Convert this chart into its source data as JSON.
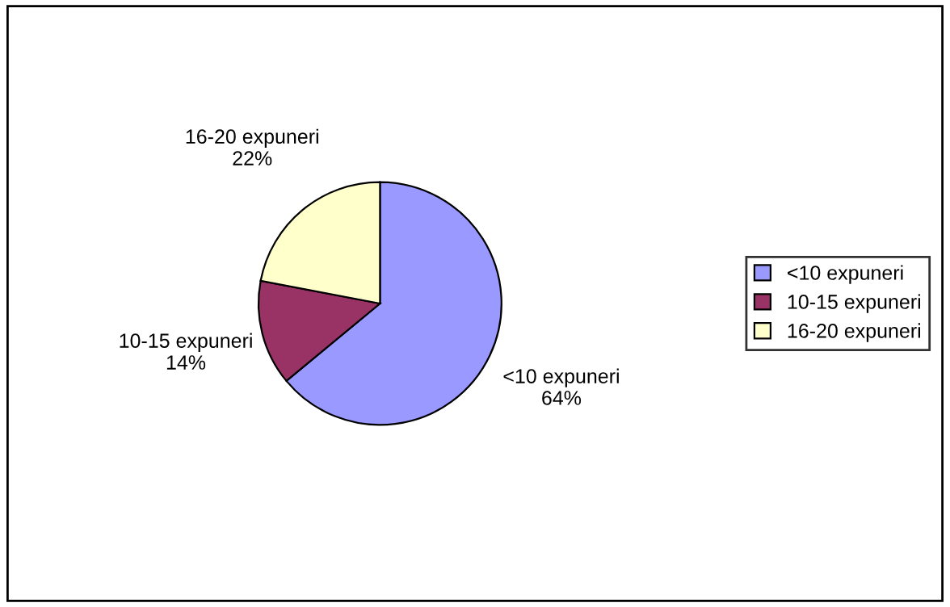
{
  "chart_data": {
    "type": "pie",
    "categories": [
      "<10 expuneri",
      "10-15 expuneri",
      "16-20 expuneri"
    ],
    "values": [
      64,
      14,
      22
    ],
    "colors": [
      "#9999ff",
      "#993366",
      "#ffffcc"
    ],
    "value_labels": [
      "64%",
      "14%",
      "22%"
    ],
    "legend": "right"
  }
}
